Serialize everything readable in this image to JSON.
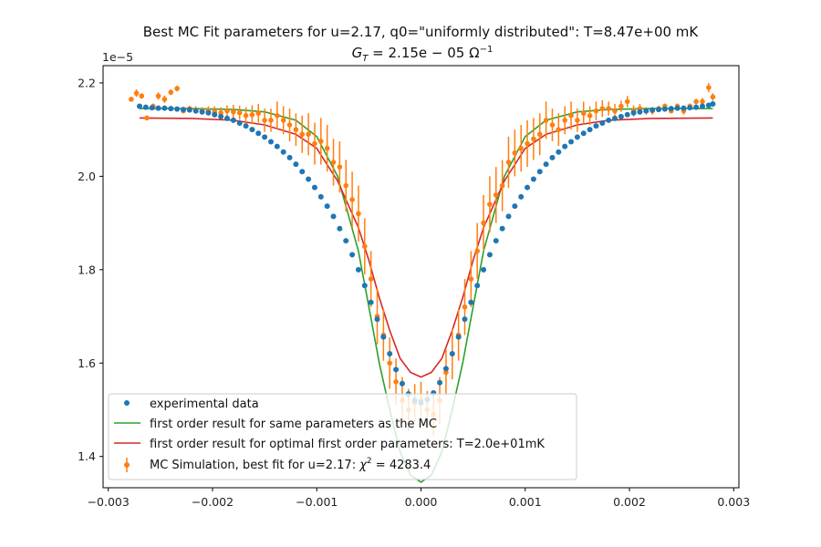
{
  "chart_data": {
    "type": "scatter",
    "title": "Best MC Fit parameters for u=2.17, q0=\"uniformly distributed\":  T=8.47e+00 mK",
    "subtitle": "G_T = 2.15e − 05 Ω⁻¹",
    "subtitle_parts": {
      "g": "G",
      "sub": "T",
      "eq": " = 2.15e − 05 Ω",
      "sup": "−1"
    },
    "offset_label": "1e−5",
    "xlim": [
      -0.00305,
      0.00305
    ],
    "ylim": [
      1.333,
      2.237
    ],
    "x_ticks": [
      {
        "v": -0.003,
        "label": "−0.003"
      },
      {
        "v": -0.002,
        "label": "−0.002"
      },
      {
        "v": -0.001,
        "label": "−0.001"
      },
      {
        "v": 0.0,
        "label": "0.000"
      },
      {
        "v": 0.001,
        "label": "0.001"
      },
      {
        "v": 0.002,
        "label": "0.002"
      },
      {
        "v": 0.003,
        "label": "0.003"
      }
    ],
    "y_ticks": [
      {
        "v": 1.4,
        "label": "1.4"
      },
      {
        "v": 1.6,
        "label": "1.6"
      },
      {
        "v": 1.8,
        "label": "1.8"
      },
      {
        "v": 2.0,
        "label": "2.0"
      },
      {
        "v": 2.2,
        "label": "2.2"
      }
    ],
    "legend_position": "lower-left",
    "legend": [
      {
        "label": "experimental data",
        "marker": "dot",
        "color": "#1f77b4"
      },
      {
        "label": "first order result for same parameters as the MC",
        "marker": "line",
        "color": "#2ca02c"
      },
      {
        "label": "first order result for optimal first order parameters: T=2.0e+01mK",
        "marker": "line",
        "color": "#d62728"
      },
      {
        "label": "MC Simulation, best fit for u=2.17:  χ² = 4283.4",
        "label_parts": {
          "pre": "MC Simulation, best fit for u=2.17:  ",
          "chi": "χ",
          "sup": "2",
          "post": " = 4283.4"
        },
        "marker": "errorbar",
        "color": "#ff7f0e"
      }
    ],
    "series": [
      {
        "name": "first order result for same parameters as the MC",
        "kind": "line",
        "color": "#2ca02c",
        "x": [
          -0.0027,
          -0.0022,
          -0.0018,
          -0.0015,
          -0.0012,
          -0.001,
          -0.0008,
          -0.0006,
          -0.0005,
          -0.0004,
          -0.0003,
          -0.0002,
          -0.0001,
          0.0,
          0.0001,
          0.0002,
          0.0003,
          0.0004,
          0.0005,
          0.0006,
          0.0008,
          0.001,
          0.0012,
          0.0015,
          0.0018,
          0.0022,
          0.0028
        ],
        "y": [
          2.145,
          2.145,
          2.143,
          2.138,
          2.12,
          2.085,
          2.0,
          1.84,
          1.72,
          1.6,
          1.5,
          1.41,
          1.36,
          1.345,
          1.36,
          1.41,
          1.5,
          1.6,
          1.72,
          1.84,
          2.0,
          2.085,
          2.12,
          2.138,
          2.143,
          2.145,
          2.145
        ]
      },
      {
        "name": "first order result for optimal first order parameters: T=2.0e+01mK",
        "kind": "line",
        "color": "#d62728",
        "x": [
          -0.0027,
          -0.0022,
          -0.0018,
          -0.0015,
          -0.0012,
          -0.001,
          -0.0008,
          -0.0006,
          -0.0005,
          -0.0004,
          -0.0003,
          -0.0002,
          -0.0001,
          0.0,
          0.0001,
          0.0002,
          0.0003,
          0.0004,
          0.0005,
          0.0006,
          0.0008,
          0.001,
          0.0012,
          0.0015,
          0.0018,
          0.0022,
          0.0028
        ],
        "y": [
          2.125,
          2.124,
          2.12,
          2.11,
          2.09,
          2.06,
          1.99,
          1.89,
          1.82,
          1.74,
          1.67,
          1.61,
          1.58,
          1.57,
          1.58,
          1.61,
          1.67,
          1.74,
          1.82,
          1.89,
          1.99,
          2.06,
          2.09,
          2.11,
          2.12,
          2.124,
          2.125
        ]
      },
      {
        "name": "MC Simulation, best fit for u=2.17:  χ² = 4283.4",
        "kind": "errorbar",
        "color": "#ff7f0e",
        "x": [
          -0.00278,
          -0.00273,
          -0.00268,
          -0.00263,
          -0.00257,
          -0.00252,
          -0.00246,
          -0.0024,
          -0.00234,
          -0.00228,
          -0.00222,
          -0.00216,
          -0.0021,
          -0.00204,
          -0.00198,
          -0.00192,
          -0.00186,
          -0.0018,
          -0.00174,
          -0.00168,
          -0.00162,
          -0.00156,
          -0.0015,
          -0.00144,
          -0.00138,
          -0.00132,
          -0.00126,
          -0.0012,
          -0.00114,
          -0.00108,
          -0.00102,
          -0.00096,
          -0.0009,
          -0.00084,
          -0.00078,
          -0.00072,
          -0.00066,
          -0.0006,
          -0.00054,
          -0.00048,
          -0.00042,
          -0.00036,
          -0.0003,
          -0.00024,
          -0.00018,
          -0.00012,
          -6e-05,
          0.0,
          6e-05,
          0.00012,
          0.00018,
          0.00024,
          0.0003,
          0.00036,
          0.00042,
          0.00048,
          0.00054,
          0.0006,
          0.00066,
          0.00072,
          0.00078,
          0.00084,
          0.0009,
          0.00096,
          0.00102,
          0.00108,
          0.00114,
          0.0012,
          0.00126,
          0.00132,
          0.00138,
          0.00144,
          0.0015,
          0.00156,
          0.00162,
          0.00168,
          0.00174,
          0.0018,
          0.00186,
          0.00192,
          0.00198,
          0.00204,
          0.0021,
          0.00216,
          0.00222,
          0.00228,
          0.00234,
          0.0024,
          0.00246,
          0.00252,
          0.00258,
          0.00264,
          0.0027,
          0.00276,
          0.0028
        ],
        "y": [
          2.165,
          2.178,
          2.172,
          2.125,
          2.15,
          2.172,
          2.165,
          2.18,
          2.188,
          2.14,
          2.145,
          2.142,
          2.14,
          2.14,
          2.138,
          2.136,
          2.14,
          2.138,
          2.136,
          2.13,
          2.132,
          2.135,
          2.12,
          2.12,
          2.13,
          2.12,
          2.11,
          2.1,
          2.09,
          2.09,
          2.07,
          2.075,
          2.06,
          2.03,
          2.02,
          1.98,
          1.95,
          1.92,
          1.85,
          1.78,
          1.7,
          1.66,
          1.6,
          1.56,
          1.52,
          1.5,
          1.515,
          1.52,
          1.5,
          1.49,
          1.52,
          1.58,
          1.62,
          1.66,
          1.72,
          1.78,
          1.84,
          1.9,
          1.94,
          1.96,
          1.98,
          2.03,
          2.05,
          2.06,
          2.07,
          2.08,
          2.09,
          2.12,
          2.11,
          2.1,
          2.12,
          2.13,
          2.12,
          2.135,
          2.13,
          2.14,
          2.145,
          2.145,
          2.14,
          2.15,
          2.16,
          2.14,
          2.145,
          2.14,
          2.14,
          2.145,
          2.15,
          2.14,
          2.15,
          2.14,
          2.15,
          2.16,
          2.16,
          2.19,
          2.17
        ],
        "err": [
          0.005,
          0.008,
          0.006,
          0.005,
          0.006,
          0.008,
          0.008,
          0.006,
          0.006,
          0.005,
          0.006,
          0.008,
          0.008,
          0.01,
          0.012,
          0.012,
          0.012,
          0.015,
          0.015,
          0.018,
          0.02,
          0.02,
          0.025,
          0.025,
          0.03,
          0.03,
          0.035,
          0.035,
          0.04,
          0.045,
          0.045,
          0.05,
          0.05,
          0.05,
          0.055,
          0.055,
          0.06,
          0.06,
          0.06,
          0.06,
          0.06,
          0.055,
          0.055,
          0.05,
          0.05,
          0.045,
          0.04,
          0.04,
          0.04,
          0.045,
          0.05,
          0.05,
          0.055,
          0.055,
          0.06,
          0.06,
          0.06,
          0.06,
          0.06,
          0.06,
          0.055,
          0.055,
          0.05,
          0.05,
          0.05,
          0.045,
          0.045,
          0.04,
          0.035,
          0.035,
          0.03,
          0.03,
          0.025,
          0.025,
          0.02,
          0.02,
          0.018,
          0.015,
          0.015,
          0.012,
          0.012,
          0.012,
          0.01,
          0.008,
          0.008,
          0.006,
          0.006,
          0.005,
          0.006,
          0.008,
          0.006,
          0.006,
          0.008,
          0.01,
          0.008
        ]
      },
      {
        "name": "experimental data",
        "kind": "scatter",
        "color": "#1f77b4",
        "x": [
          -0.0027,
          -0.00264,
          -0.00258,
          -0.00252,
          -0.00246,
          -0.0024,
          -0.00234,
          -0.00228,
          -0.00222,
          -0.00216,
          -0.0021,
          -0.00204,
          -0.00198,
          -0.00192,
          -0.00186,
          -0.0018,
          -0.00174,
          -0.00168,
          -0.00162,
          -0.00156,
          -0.0015,
          -0.00144,
          -0.00138,
          -0.00132,
          -0.00126,
          -0.0012,
          -0.00114,
          -0.00108,
          -0.00102,
          -0.00096,
          -0.0009,
          -0.00084,
          -0.00078,
          -0.00072,
          -0.00066,
          -0.0006,
          -0.00054,
          -0.00048,
          -0.00042,
          -0.00036,
          -0.0003,
          -0.00024,
          -0.00018,
          -0.00012,
          -6e-05,
          0.0,
          6e-05,
          0.00012,
          0.00018,
          0.00024,
          0.0003,
          0.00036,
          0.00042,
          0.00048,
          0.00054,
          0.0006,
          0.00066,
          0.00072,
          0.00078,
          0.00084,
          0.0009,
          0.00096,
          0.00102,
          0.00108,
          0.00114,
          0.0012,
          0.00126,
          0.00132,
          0.00138,
          0.00144,
          0.0015,
          0.00156,
          0.00162,
          0.00168,
          0.00174,
          0.0018,
          0.00186,
          0.00192,
          0.00198,
          0.00204,
          0.0021,
          0.00216,
          0.00222,
          0.00228,
          0.00234,
          0.0024,
          0.00246,
          0.00252,
          0.00258,
          0.00264,
          0.0027,
          0.00276,
          0.0028
        ],
        "y": [
          2.15,
          2.148,
          2.147,
          2.146,
          2.146,
          2.145,
          2.144,
          2.143,
          2.142,
          2.14,
          2.138,
          2.136,
          2.132,
          2.128,
          2.124,
          2.12,
          2.114,
          2.108,
          2.1,
          2.092,
          2.084,
          2.074,
          2.064,
          2.052,
          2.04,
          2.026,
          2.01,
          1.994,
          1.976,
          1.956,
          1.936,
          1.914,
          1.888,
          1.862,
          1.832,
          1.8,
          1.766,
          1.73,
          1.694,
          1.656,
          1.62,
          1.586,
          1.556,
          1.534,
          1.52,
          1.515,
          1.522,
          1.536,
          1.558,
          1.588,
          1.62,
          1.656,
          1.694,
          1.73,
          1.766,
          1.8,
          1.832,
          1.862,
          1.888,
          1.914,
          1.936,
          1.956,
          1.976,
          1.994,
          2.01,
          2.026,
          2.04,
          2.052,
          2.064,
          2.074,
          2.084,
          2.092,
          2.1,
          2.108,
          2.114,
          2.12,
          2.124,
          2.128,
          2.132,
          2.136,
          2.138,
          2.14,
          2.142,
          2.143,
          2.144,
          2.145,
          2.146,
          2.146,
          2.147,
          2.148,
          2.15,
          2.152,
          2.155
        ]
      }
    ]
  }
}
